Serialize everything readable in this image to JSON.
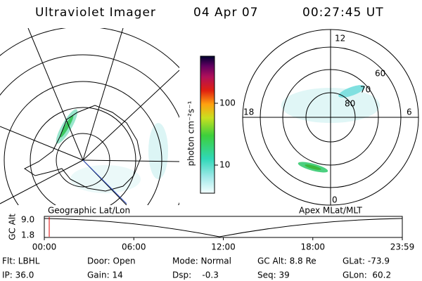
{
  "header": {
    "title": "Ultraviolet Imager",
    "date": "04 Apr 07",
    "time": "00:27:45 UT"
  },
  "colorbar": {
    "label": "photon cm⁻²s⁻¹",
    "ticks": [
      "100",
      "10"
    ]
  },
  "polar": {
    "labels": [
      "12",
      "0",
      "18",
      "6",
      "60",
      "70",
      "80"
    ]
  },
  "projections": {
    "left": "Geographic Lat/Lon",
    "right": "Apex MLat/MLT"
  },
  "timeline": {
    "axis_label": "GC Alt",
    "ticks": [
      "9.0",
      "1.8"
    ],
    "times": [
      "00:00",
      "06:00",
      "12:00",
      "18:00",
      "23:59"
    ]
  },
  "footer": {
    "rows": [
      [
        "Flt: LBHL",
        "Door: Open",
        "Mode: Normal",
        "GC Alt: 8.8 Re",
        "GLat: -73.9"
      ],
      [
        "IP: 36.0",
        "Gain: 14",
        "Dsp:    -0.3",
        "Seq: 39",
        "GLon:  60.2"
      ]
    ]
  }
}
